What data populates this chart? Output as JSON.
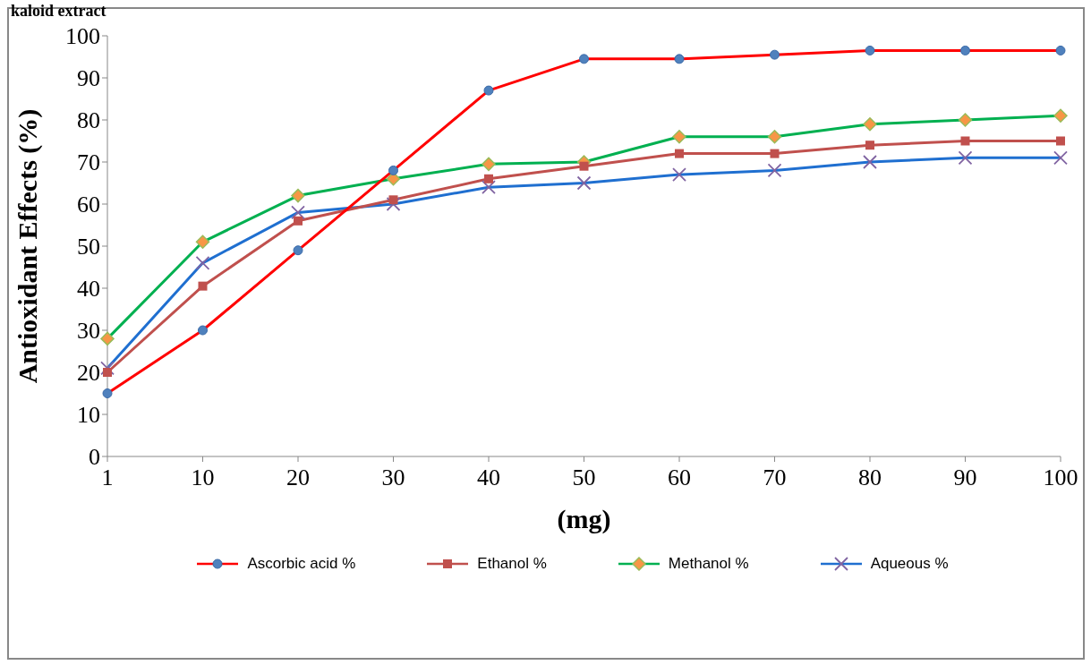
{
  "chart_data": {
    "type": "line",
    "title": "kaloid extract",
    "xlabel": "(mg)",
    "ylabel": "Antioxidant Effects (%)",
    "categories": [
      "1",
      "10",
      "20",
      "30",
      "40",
      "50",
      "60",
      "70",
      "80",
      "90",
      "100"
    ],
    "series": [
      {
        "name": "Ascorbic  acid %",
        "color": "#ff0000",
        "marker": "circle",
        "values": [
          15,
          30,
          49,
          68,
          87,
          94.5,
          94.5,
          95.5,
          96.5,
          96.5,
          96.5
        ]
      },
      {
        "name": "Ethanol %",
        "color": "#c0504d",
        "marker": "square",
        "values": [
          20,
          40.5,
          56,
          61,
          66,
          69,
          72,
          72,
          74,
          75,
          75
        ]
      },
      {
        "name": "Methanol %",
        "color": "#00b050",
        "marker": "diamond",
        "values": [
          28,
          51,
          62,
          66,
          69.5,
          70,
          76,
          76,
          79,
          80,
          81
        ]
      },
      {
        "name": "Aqueous %",
        "color": "#1f6fd0",
        "marker": "cross",
        "values": [
          21,
          46,
          58,
          60,
          64,
          65,
          67,
          68,
          70,
          71,
          71
        ]
      }
    ],
    "ylim": [
      0,
      100
    ],
    "yticks": [
      0,
      10,
      20,
      30,
      40,
      50,
      60,
      70,
      80,
      90,
      100
    ],
    "grid": false,
    "legend": "bottom"
  }
}
